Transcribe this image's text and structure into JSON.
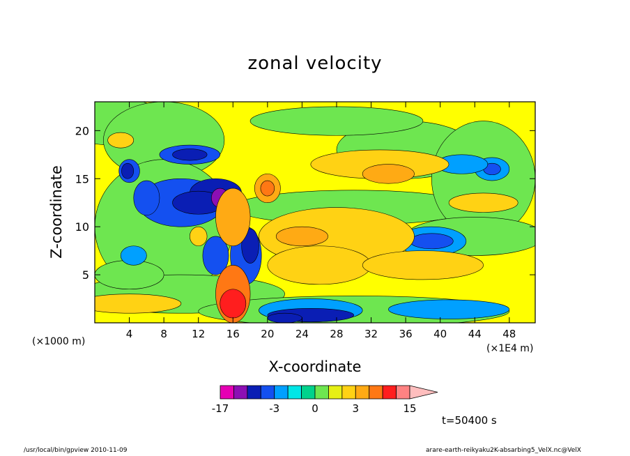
{
  "title": "zonal velocity",
  "footer_left": "/usr/local/bin/gpview  2010-11-09",
  "footer_right": "arare-earth-reikyaku2K-absarbing5_VelX.nc@VelX",
  "time_label": "t=50400 s",
  "chart_data": {
    "type": "heatmap",
    "title": "zonal velocity",
    "xlabel": "X-coordinate",
    "ylabel": "Z-coordinate",
    "x_unit_left": "(×1000 m)",
    "x_unit_right": "(×1E4 m)",
    "x_ticks": [
      "4",
      "8",
      "12",
      "16",
      "20",
      "24",
      "28",
      "32",
      "36",
      "40",
      "44",
      "48"
    ],
    "x_tick_values": [
      4,
      8,
      12,
      16,
      20,
      24,
      28,
      32,
      36,
      40,
      44,
      48
    ],
    "y_ticks": [
      "5",
      "10",
      "15",
      "20"
    ],
    "y_tick_values": [
      5,
      10,
      15,
      20
    ],
    "xlim": [
      0,
      51
    ],
    "ylim": [
      0,
      23
    ],
    "colorbar": {
      "levels": [
        -17,
        -12,
        -9,
        -6,
        -3,
        -2,
        -1,
        0,
        1,
        2,
        3,
        6,
        9,
        12,
        15
      ],
      "colors": [
        "#e600b4",
        "#8c0fb4",
        "#0a1eb4",
        "#1450f0",
        "#00a0ff",
        "#00e6e6",
        "#00d28c",
        "#6ee650",
        "#e6f014",
        "#ffd214",
        "#ffaa14",
        "#ff7814",
        "#ff1e1e",
        "#ff8282",
        "#ffbebe"
      ],
      "labels": [
        {
          "text": "-17",
          "value": -17
        },
        {
          "text": "-3",
          "value": -3
        },
        {
          "text": "0",
          "value": 0
        },
        {
          "text": "3",
          "value": 3
        },
        {
          "text": "15",
          "value": 15
        }
      ]
    }
  }
}
